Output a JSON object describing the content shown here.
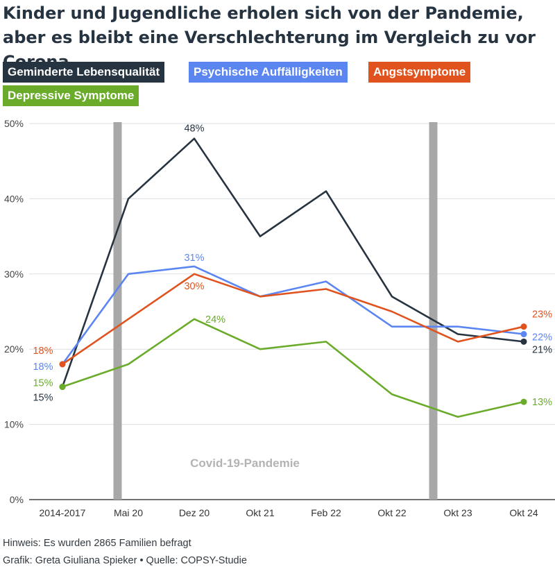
{
  "title": "Kinder und Jugendliche erholen sich von der Pandemie, aber es bleibt eine Verschlechterung im Vergleich zu vor Corona",
  "colors": {
    "Geminderte Lebensqualität": "#263340",
    "Psychische Auffälligkeiten": "#5b86f2",
    "Angstsymptome": "#e0531e",
    "Depressive Symptome": "#6aab2a"
  },
  "footer": {
    "note": "Hinweis: Es wurden 2865 Familien befragt",
    "credit": "Grafik: Greta Giuliana Spieker • Quelle: COPSY-Studie"
  },
  "chart_data": {
    "type": "line",
    "categories": [
      "2014-2017",
      "Mai 20",
      "Dez 20",
      "Okt 21",
      "Feb 22",
      "Okt 22",
      "Okt 23",
      "Okt 24"
    ],
    "ylim": [
      0,
      50
    ],
    "yticks": [
      "0%",
      "10%",
      "20%",
      "30%",
      "40%",
      "50%"
    ],
    "grid": true,
    "legend_position": "top",
    "series": [
      {
        "name": "Geminderte Lebensqualität",
        "values": [
          15,
          40,
          48,
          35,
          41,
          27,
          22,
          21
        ]
      },
      {
        "name": "Psychische Auffälligkeiten",
        "values": [
          18,
          30,
          31,
          27,
          29,
          23,
          23,
          22
        ]
      },
      {
        "name": "Angstsymptome",
        "values": [
          18,
          24,
          30,
          27,
          28,
          25,
          21,
          23
        ]
      },
      {
        "name": "Depressive Symptome",
        "values": [
          15,
          18,
          24,
          20,
          21,
          14,
          11,
          13
        ]
      }
    ],
    "data_labels": [
      {
        "series": 0,
        "index": 0,
        "text": "15%"
      },
      {
        "series": 3,
        "index": 0,
        "text": "15%"
      },
      {
        "series": 2,
        "index": 0,
        "text": "18%"
      },
      {
        "series": 1,
        "index": 0,
        "text": "18%"
      },
      {
        "series": 0,
        "index": 2,
        "text": "48%"
      },
      {
        "series": 1,
        "index": 2,
        "text": "31%"
      },
      {
        "series": 2,
        "index": 2,
        "text": "30%"
      },
      {
        "series": 3,
        "index": 2,
        "text": "24%"
      },
      {
        "series": 2,
        "index": 7,
        "text": "23%"
      },
      {
        "series": 1,
        "index": 7,
        "text": "22%"
      },
      {
        "series": 0,
        "index": 7,
        "text": "21%"
      },
      {
        "series": 3,
        "index": 7,
        "text": "13%"
      }
    ],
    "period_markers": {
      "start": "Mai 20",
      "end": "Okt 22",
      "label": "Covid-19-Pandemie"
    }
  }
}
